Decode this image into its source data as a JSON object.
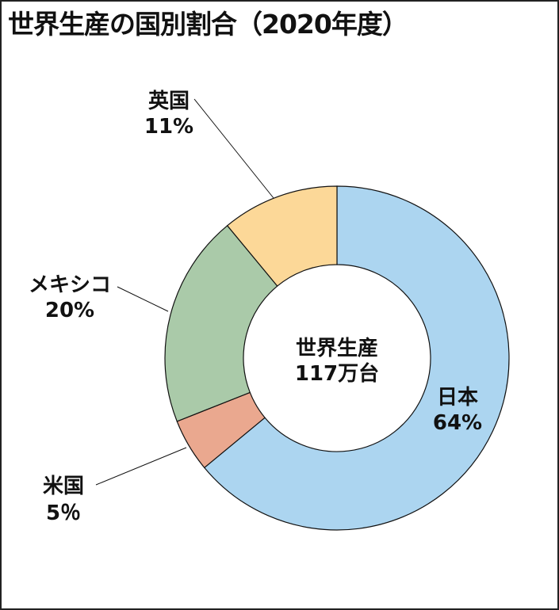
{
  "chart_data": {
    "type": "pie",
    "variant": "donut",
    "title": "世界生産の国別割合（2020年度）",
    "center_label": [
      "世界生産",
      "117万台"
    ],
    "start": "top",
    "direction": "clockwise",
    "slices": [
      {
        "name": "日本",
        "value": 64,
        "label": "64%",
        "color": "#acd5f0"
      },
      {
        "name": "米国",
        "value": 5,
        "label": "5％",
        "color": "#eaa88f"
      },
      {
        "name": "メキシコ",
        "value": 20,
        "label": "20%",
        "color": "#aacaa9"
      },
      {
        "name": "英国",
        "value": 11,
        "label": "11%",
        "color": "#fcd898"
      }
    ]
  }
}
